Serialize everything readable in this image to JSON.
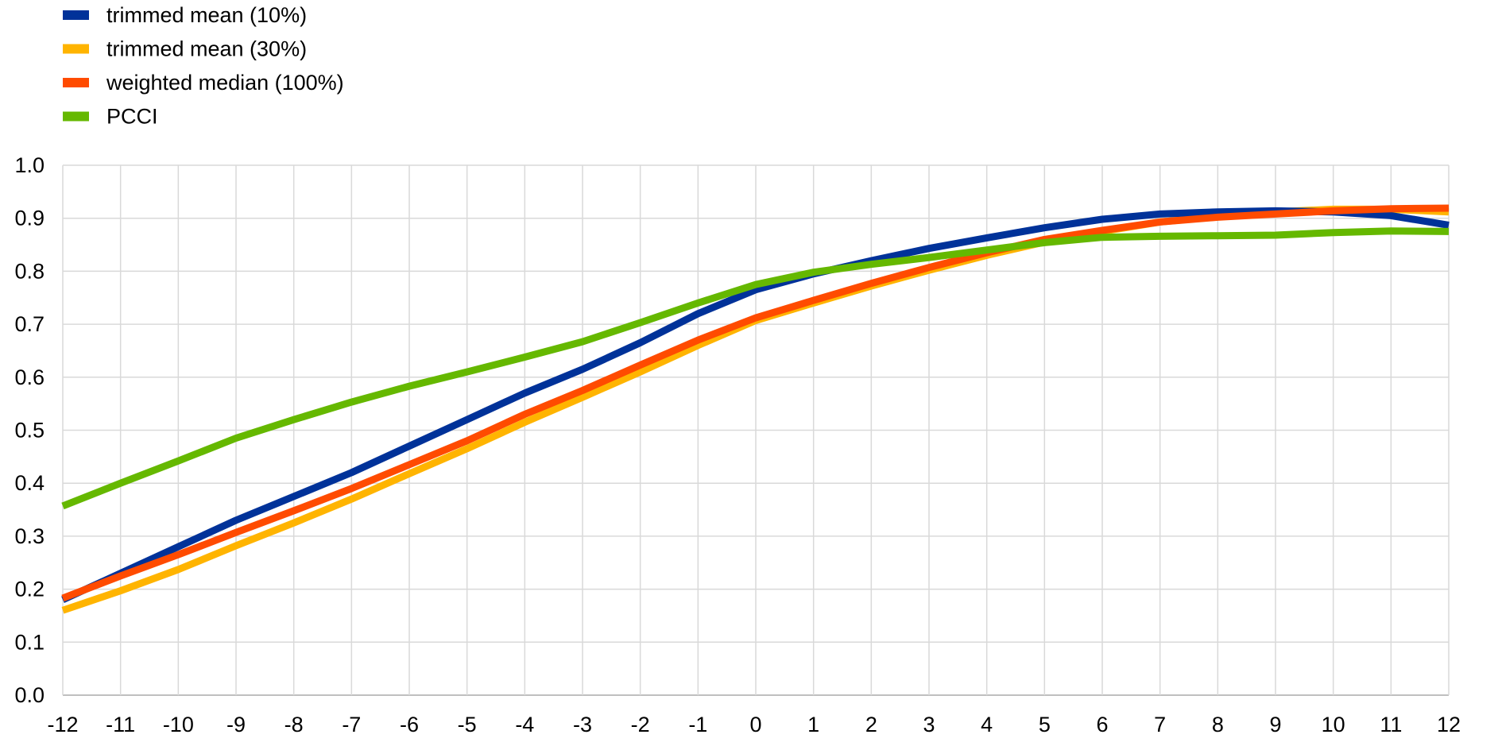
{
  "chart_data": {
    "type": "line",
    "title": "",
    "xlabel": "",
    "ylabel": "",
    "x": [
      -12,
      -11,
      -10,
      -9,
      -8,
      -7,
      -6,
      -5,
      -4,
      -3,
      -2,
      -1,
      0,
      1,
      2,
      3,
      4,
      5,
      6,
      7,
      8,
      9,
      10,
      11,
      12
    ],
    "xlim": [
      -12,
      12
    ],
    "ylim": [
      0.0,
      1.0
    ],
    "yticks": [
      "0.0",
      "0.1",
      "0.2",
      "0.3",
      "0.4",
      "0.5",
      "0.6",
      "0.7",
      "0.8",
      "0.9",
      "1.0"
    ],
    "grid": true,
    "legend_position": "top-left",
    "series": [
      {
        "name": "trimmed mean (10%)",
        "color": "#003299",
        "values": [
          0.18,
          0.23,
          0.28,
          0.33,
          0.375,
          0.42,
          0.47,
          0.52,
          0.57,
          0.615,
          0.665,
          0.72,
          0.765,
          0.795,
          0.82,
          0.843,
          0.863,
          0.882,
          0.898,
          0.908,
          0.912,
          0.914,
          0.912,
          0.905,
          0.887
        ]
      },
      {
        "name": "trimmed mean (30%)",
        "color": "#FFB400",
        "values": [
          0.16,
          0.197,
          0.237,
          0.282,
          0.325,
          0.37,
          0.418,
          0.465,
          0.515,
          0.562,
          0.61,
          0.66,
          0.707,
          0.74,
          0.772,
          0.802,
          0.83,
          0.855,
          0.875,
          0.893,
          0.903,
          0.912,
          0.917,
          0.917,
          0.912
        ]
      },
      {
        "name": "weighted median (100%)",
        "color": "#FF4B00",
        "values": [
          0.183,
          0.225,
          0.265,
          0.307,
          0.348,
          0.39,
          0.435,
          0.48,
          0.53,
          0.575,
          0.623,
          0.67,
          0.712,
          0.745,
          0.777,
          0.807,
          0.835,
          0.86,
          0.877,
          0.893,
          0.902,
          0.908,
          0.914,
          0.918,
          0.919
        ]
      },
      {
        "name": "PCCI",
        "color": "#65B800",
        "values": [
          0.357,
          0.4,
          0.442,
          0.485,
          0.52,
          0.553,
          0.583,
          0.61,
          0.638,
          0.667,
          0.703,
          0.74,
          0.775,
          0.798,
          0.813,
          0.826,
          0.84,
          0.854,
          0.864,
          0.866,
          0.867,
          0.868,
          0.873,
          0.876,
          0.875
        ]
      }
    ],
    "draw_order": [
      1,
      0,
      2,
      3
    ]
  }
}
